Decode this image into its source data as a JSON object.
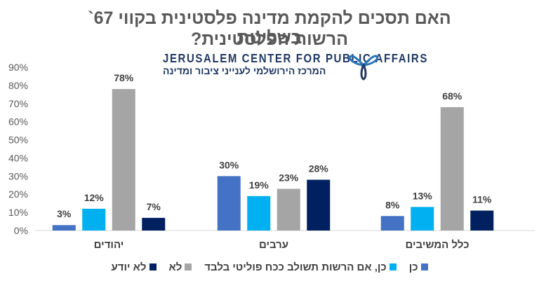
{
  "chart_data": {
    "type": "bar",
    "title_line1": "האם תסכים להקמת מדינה פלסטינית בקווי 67` בשליטת",
    "title_line2": "הרשות הפלסטינית?",
    "categories": [
      "יהודים",
      "ערבים",
      "כלל המשיבים"
    ],
    "series": [
      {
        "name": "כן",
        "values": [
          3,
          30,
          8
        ],
        "labels": [
          "3%",
          "30%",
          "8%"
        ],
        "color": "#4472c4"
      },
      {
        "name": "כן, אם הרשות תשולב ככח פוליטי בלבד",
        "values": [
          12,
          19,
          13
        ],
        "labels": [
          "12%",
          "19%",
          "13%"
        ],
        "color": "#00b0f0"
      },
      {
        "name": "לא",
        "values": [
          78,
          23,
          68
        ],
        "labels": [
          "78%",
          "23%",
          "68%"
        ],
        "color": "#a5a5a5"
      },
      {
        "name": "לא יודע",
        "values": [
          7,
          28,
          11
        ],
        "labels": [
          "7%",
          "28%",
          "11%"
        ],
        "color": "#002060"
      }
    ],
    "yticks": [
      "0%",
      "10%",
      "20%",
      "30%",
      "40%",
      "50%",
      "60%",
      "70%",
      "80%",
      "90%"
    ],
    "ylim": [
      0,
      90
    ],
    "grid": false,
    "legend_position": "bottom"
  },
  "logo": {
    "english": "JERUSALEM CENTER FOR PUBLIC AFFAIRS",
    "hebrew": "המרכז הירושלמי לענייני ציבור ומדינה",
    "color": "#1f3864"
  }
}
